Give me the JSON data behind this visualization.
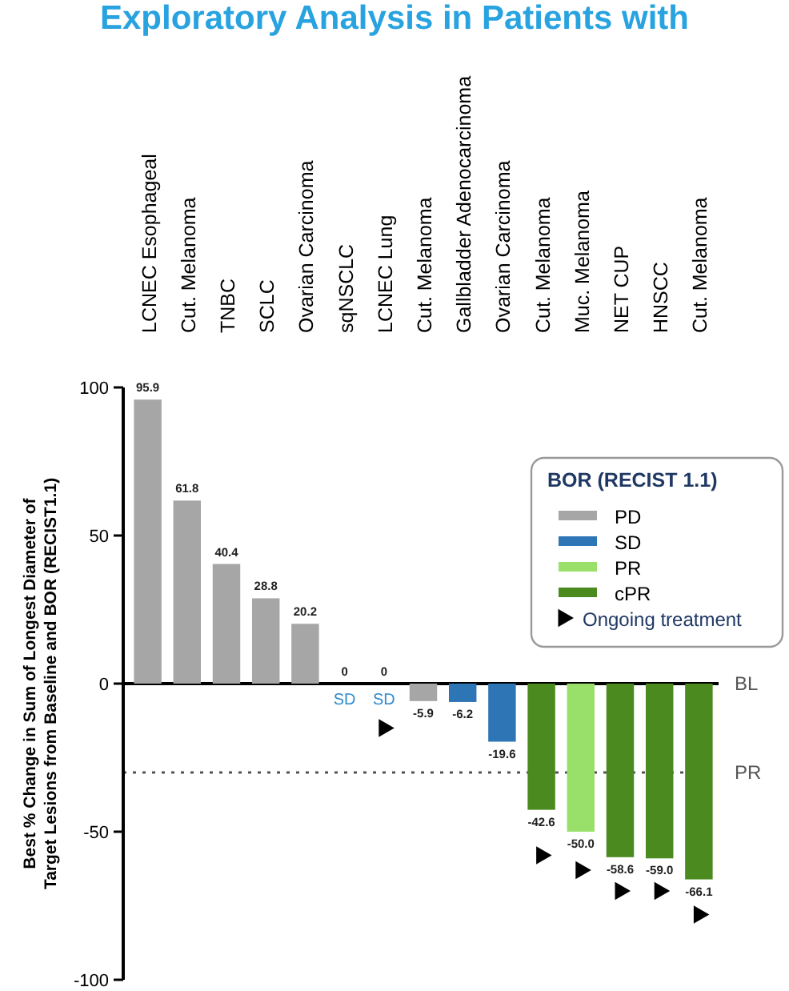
{
  "chart_data": {
    "type": "bar",
    "title": "Exploratory Analysis in Patients with",
    "ylabel": "Best % Change in Sum of Longest Diameter of Target Lesions from Baseline and BOR (RECIST1.1)",
    "legend_title": "BOR (RECIST 1.1)",
    "legend": "right",
    "stacked": true,
    "categories": [
      "LCNEC Esophageal",
      "Cut. Melanoma",
      "TNBC",
      "SCLC",
      "Ovarian Carcinoma",
      "sqNSCLC",
      "LCNEC Lung",
      "Cut. Melanoma",
      "Gallbladder Adenocarcinoma",
      "Ovarian Carcinoma",
      "Cut. Melanoma",
      "Muc. Melanoma",
      "NET CUP",
      "HNSCC",
      "Cut. Melanoma"
    ],
    "series": [
      {
        "name": "PD",
        "color": "#a6a6a6",
        "values": [
          95.9,
          61.8,
          40.4,
          28.8,
          20.2,
          null,
          null,
          -5.9,
          null,
          null,
          null,
          null,
          null,
          null,
          null
        ],
        "value_labels": [
          "95.9",
          "61.8",
          "40.4",
          "28.8",
          "20.2",
          null,
          null,
          "-5.9",
          null,
          null,
          null,
          null,
          null,
          null,
          null
        ]
      },
      {
        "name": "SD",
        "color": "#2e75b6",
        "values": [
          null,
          null,
          null,
          null,
          null,
          0,
          0,
          null,
          -6.2,
          -19.6,
          null,
          null,
          null,
          null,
          null
        ],
        "value_labels": [
          null,
          null,
          null,
          null,
          null,
          "0",
          "0",
          null,
          "-6.2",
          "-19.6",
          null,
          null,
          null,
          null,
          null
        ]
      },
      {
        "name": "PR",
        "color": "#99e06a",
        "values": [
          null,
          null,
          null,
          null,
          null,
          null,
          null,
          null,
          null,
          null,
          null,
          -50.0,
          null,
          null,
          null
        ],
        "value_labels": [
          null,
          null,
          null,
          null,
          null,
          null,
          null,
          null,
          null,
          null,
          null,
          "-50.0",
          null,
          null,
          null
        ]
      },
      {
        "name": "cPR",
        "color": "#4a8a1e",
        "values": [
          null,
          null,
          null,
          null,
          null,
          null,
          null,
          null,
          null,
          null,
          -42.6,
          null,
          -58.6,
          -59.0,
          -66.1
        ],
        "value_labels": [
          null,
          null,
          null,
          null,
          null,
          null,
          null,
          null,
          null,
          null,
          "-42.6",
          null,
          "-58.6",
          "-59.0",
          "-66.1"
        ]
      },
      {
        "name": "Ongoing treatment",
        "type": "scatter",
        "color": "#000000",
        "marker": "triangle",
        "values": [
          null,
          null,
          null,
          null,
          null,
          null,
          -15,
          null,
          null,
          null,
          -58,
          -63,
          -70,
          -70,
          -78
        ]
      }
    ],
    "ylim": [
      -100,
      100
    ],
    "yticks": [
      -100,
      -50,
      0,
      50,
      100
    ],
    "ref_lines": [
      {
        "axis": "y",
        "value": 0,
        "label": "BL",
        "line_style": "solid",
        "color": "#000000"
      },
      {
        "axis": "y",
        "value": -30,
        "label": "PR",
        "line_style": "dotted",
        "color": "#555555"
      }
    ],
    "annotations": [
      {
        "text": "SD",
        "x": "sqNSCLC",
        "y": 0
      },
      {
        "text": "SD",
        "x": "LCNEC Lung",
        "y": 0
      }
    ],
    "grid": false
  }
}
